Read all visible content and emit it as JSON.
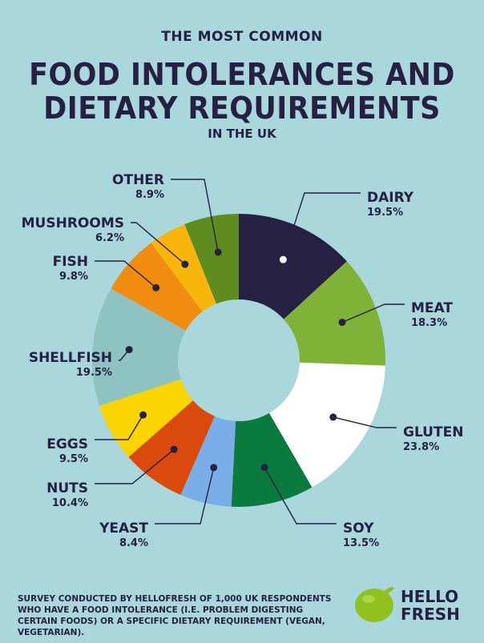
{
  "header": {
    "top": "THE MOST COMMON",
    "line1": "FOOD INTOLERANCES AND",
    "line2": "DIETARY REQUIREMENTS",
    "bottom": "IN THE UK"
  },
  "chart_data": {
    "type": "pie",
    "title": "THE MOST COMMON FOOD INTOLERANCES AND DIETARY REQUIREMENTS IN THE UK",
    "slices": [
      {
        "name": "DAIRY",
        "label": "19.5%",
        "value": 19.5,
        "color": "#262043"
      },
      {
        "name": "MEAT",
        "label": "18.3%",
        "value": 18.3,
        "color": "#7fb236"
      },
      {
        "name": "GLUTEN",
        "label": "23.8%",
        "value": 23.8,
        "color": "#ffffff"
      },
      {
        "name": "SOY",
        "label": "13.5%",
        "value": 13.5,
        "color": "#0b7a3e"
      },
      {
        "name": "YEAST",
        "label": "8.4%",
        "value": 8.4,
        "color": "#7aaee8"
      },
      {
        "name": "NUTS",
        "label": "10.4%",
        "value": 10.4,
        "color": "#da4a0c"
      },
      {
        "name": "EGGS",
        "label": "9.5%",
        "value": 9.5,
        "color": "#fbd500"
      },
      {
        "name": "SHELLFISH",
        "label": "19.5%",
        "value": 19.5,
        "color": "#8ec3c1"
      },
      {
        "name": "FISH",
        "label": "9.8%",
        "value": 9.8,
        "color": "#f08c10"
      },
      {
        "name": "MUSHROOMS",
        "label": "6.2%",
        "value": 6.2,
        "color": "#f8b60c"
      },
      {
        "name": "OTHER",
        "label": "8.9%",
        "value": 8.9,
        "color": "#5f8c1e"
      }
    ]
  },
  "footer": {
    "survey": "SURVEY CONDUCTED BY HELLOFRESH OF 1,000 UK RESPONDENTS WHO HAVE A FOOD INTOLERANCE (I.E. PROBLEM DIGESTING CERTAIN FOODS) OR A SPECIFIC DIETARY REQUIREMENT (VEGAN, VEGETARIAN)."
  },
  "logo": {
    "line1": "HELLO",
    "line2": "FRESH",
    "icon": "lime-icon",
    "color": "#91c11e"
  }
}
